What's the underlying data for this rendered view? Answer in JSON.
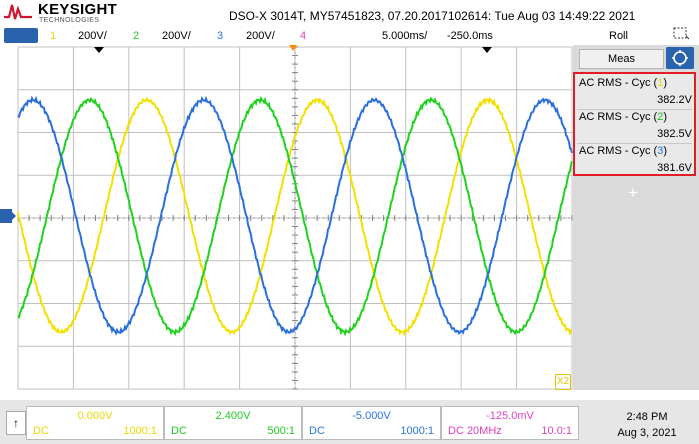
{
  "brand": {
    "name": "KEYSIGHT",
    "sub": "TECHNOLOGIES"
  },
  "title": "DSO-X 3014T,  MY57451823,  07.20.2017102614:  Tue Aug 03 14:49:22 2021",
  "channels": [
    {
      "num": "1",
      "scale": "200V/",
      "color": "#e8d800"
    },
    {
      "num": "2",
      "scale": "200V/",
      "color": "#1ec81e"
    },
    {
      "num": "3",
      "scale": "200V/",
      "color": "#2a74e0"
    },
    {
      "num": "4",
      "scale": "",
      "color": "#e040c0"
    }
  ],
  "ch1_tab": "",
  "timebase": "5.000ms/",
  "delay": "-250.0ms",
  "mode": "Roll",
  "panel": {
    "meas_label": "Meas",
    "add_label": "+",
    "measurements": [
      {
        "label_prefix": "AC RMS - Cyc (",
        "ch": "1",
        "label_suffix": ")",
        "value": "382.2V",
        "ch_color": "#e8d800"
      },
      {
        "label_prefix": "AC RMS - Cyc (",
        "ch": "2",
        "label_suffix": ")",
        "value": "382.5V",
        "ch_color": "#1ec81e"
      },
      {
        "label_prefix": "AC RMS - Cyc (",
        "ch": "3",
        "label_suffix": ")",
        "value": "381.6V",
        "ch_color": "#2a74e0"
      }
    ]
  },
  "x2_label": "X2",
  "bottom": {
    "up_icon": "↑",
    "boxes": [
      {
        "value": "0.000V",
        "coupling": "DC",
        "probe": "1000:1",
        "color": "#e8d800"
      },
      {
        "value": "2.400V",
        "coupling": "DC",
        "probe": "500:1",
        "color": "#1ec81e"
      },
      {
        "value": "-5.000V",
        "coupling": "DC",
        "probe": "1000:1",
        "color": "#2a74e0"
      },
      {
        "value": "-125.0mV",
        "coupling": "DC 20MHz",
        "probe": "10.0:1",
        "color": "#e040c0"
      }
    ],
    "time": "2:48 PM",
    "date": "Aug 3, 2021"
  },
  "waveforms": {
    "ch1": {
      "color": "#f2e000"
    },
    "ch2": {
      "color": "#1ed21e"
    },
    "ch3": {
      "color": "#2a6fdb"
    }
  }
}
